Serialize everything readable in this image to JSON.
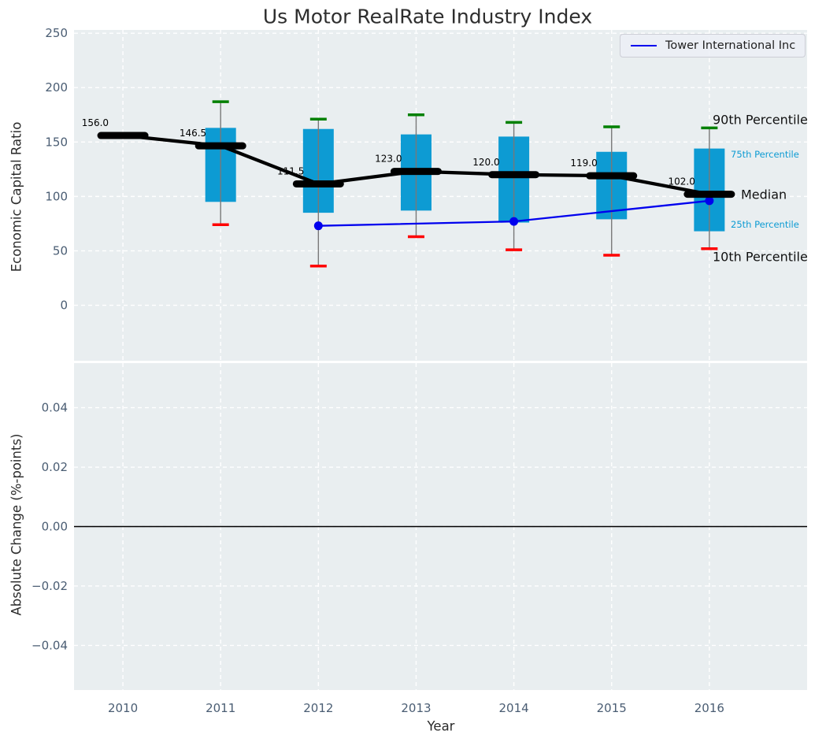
{
  "figure": {
    "title": "Us Motor RealRate Industry Index",
    "bg_color": "#ffffff",
    "axes_bg_color": "#e9eef0",
    "grid_color": "#ffffff",
    "tick_color": "#4a5d73",
    "text_color": "#2b2b2b"
  },
  "legend": {
    "label": "Tower International Inc",
    "line_color": "#0000ee"
  },
  "top_plot": {
    "ylabel": "Economic Capital Ratio",
    "ytick_labels": [
      "250",
      "200",
      "150",
      "100",
      "50",
      "0"
    ],
    "ytick_values": [
      250,
      200,
      150,
      100,
      50,
      0
    ],
    "ylim": [
      -51,
      253
    ],
    "annotations": {
      "p90": "90th Percentile",
      "p75": "75th Percentile",
      "median": "Median",
      "p25": "25th Percentile",
      "p10": "10th Percentile"
    }
  },
  "bottom_plot": {
    "ylabel": "Absolute Change (%-points)",
    "ytick_labels": [
      "0.04",
      "0.02",
      "0.00",
      "−0.02",
      "−0.04"
    ],
    "ytick_values": [
      0.04,
      0.02,
      0.0,
      -0.02,
      -0.04
    ],
    "ylim": [
      -0.055,
      0.055
    ],
    "zero_line_color": "#000000"
  },
  "x_axis": {
    "label": "Year",
    "tick_labels": [
      "2010",
      "2011",
      "2012",
      "2013",
      "2014",
      "2015",
      "2016"
    ],
    "tick_values": [
      2010,
      2011,
      2012,
      2013,
      2014,
      2015,
      2016
    ],
    "xlim": [
      2009.5,
      2017
    ]
  },
  "chart_data": {
    "type": "line+box",
    "title": "Us Motor RealRate Industry Index",
    "xlabel": "Year",
    "grid": true,
    "legend_position": "upper right",
    "x": [
      2010,
      2011,
      2012,
      2013,
      2014,
      2015,
      2016
    ],
    "series": [
      {
        "name": "Median",
        "values": [
          156.0,
          146.5,
          111.5,
          123.0,
          120.0,
          119.0,
          102.0
        ],
        "labels": [
          "156.0",
          "146.5",
          "111.5",
          "123.0",
          "120.0",
          "119.0",
          "102.0"
        ],
        "color": "#000000"
      },
      {
        "name": "Tower International Inc",
        "x": [
          2012,
          2014,
          2016
        ],
        "values": [
          73,
          77,
          96
        ],
        "color": "#0000ee"
      }
    ],
    "percentile_boxes": {
      "p90": [
        null,
        187,
        171,
        175,
        168,
        164,
        163
      ],
      "p75": [
        null,
        163,
        162,
        157,
        155,
        141,
        144
      ],
      "p25": [
        null,
        95,
        85,
        87,
        76,
        79,
        68
      ],
      "p10": [
        null,
        74,
        36,
        63,
        51,
        46,
        52
      ],
      "box_color": "#0d9bd3",
      "whisker_color": "#787878",
      "cap_top_color": "#008000",
      "cap_bottom_color": "#ff0000"
    }
  }
}
